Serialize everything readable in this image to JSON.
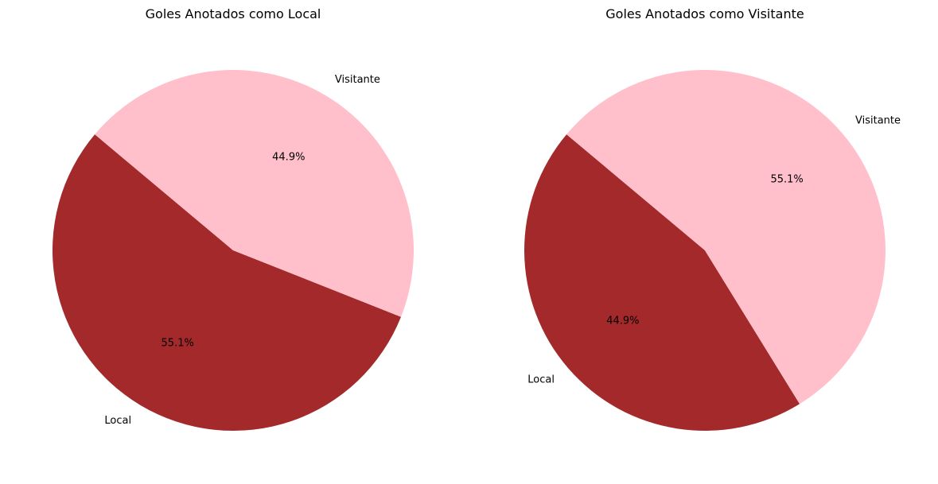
{
  "chart_data": [
    {
      "type": "pie",
      "title": "Goles Anotados como Local",
      "slices": [
        {
          "label": "Local",
          "value": 55.1,
          "pct_label": "55.1%",
          "color": "#a3292a"
        },
        {
          "label": "Visitante",
          "value": 44.9,
          "pct_label": "44.9%",
          "color": "#ffc0cb"
        }
      ],
      "start_angle_deg": 140,
      "direction": "counterclockwise"
    },
    {
      "type": "pie",
      "title": "Goles Anotados como Visitante",
      "slices": [
        {
          "label": "Local",
          "value": 44.9,
          "pct_label": "44.9%",
          "color": "#a3292a"
        },
        {
          "label": "Visitante",
          "value": 55.1,
          "pct_label": "55.1%",
          "color": "#ffc0cb"
        }
      ],
      "start_angle_deg": 140,
      "direction": "counterclockwise"
    }
  ]
}
